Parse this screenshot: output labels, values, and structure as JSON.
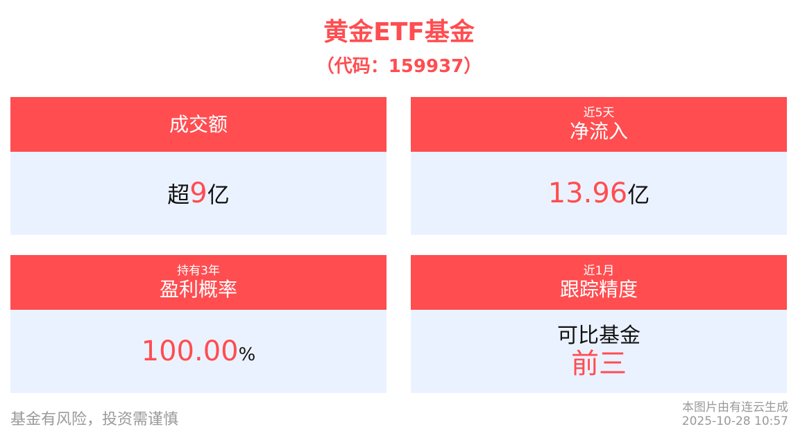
{
  "header": {
    "title": "黄金ETF基金",
    "code": "（代码：159937）"
  },
  "cards": [
    {
      "subtitle": "",
      "title": "成交额",
      "prefix": "超",
      "value": "9",
      "suffix": "亿"
    },
    {
      "subtitle": "近5天",
      "title": "净流入",
      "prefix": "",
      "value": "13.96",
      "suffix": "亿"
    },
    {
      "subtitle": "持有3年",
      "title": "盈利概率",
      "prefix": "",
      "value": "100.00",
      "suffix": "%"
    },
    {
      "subtitle": "近1月",
      "title": "跟踪精度",
      "line1": "可比基金",
      "value": "前三"
    }
  ],
  "footer": {
    "disclaimer": "基金有风险，投资需谨慎",
    "source": "本图片由有连云生成",
    "timestamp": "2025-10-28 10:57"
  },
  "colors": {
    "accent": "#ff4d50",
    "card_bg": "#ebf2ff"
  }
}
